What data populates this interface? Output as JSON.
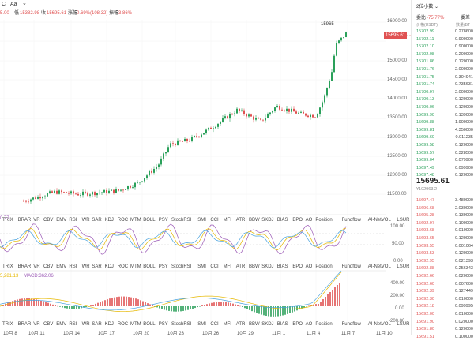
{
  "toolbar": {
    "c_label": "C",
    "aa_label": "Aa",
    "dropdown_label": "⌄"
  },
  "info": {
    "high": "5.00",
    "low_label": "低",
    "low": "15382.98",
    "close_label": "收",
    "close": "15695.61",
    "change_label": "涨幅",
    "change": "0.69%(108.32)",
    "amp_label": "振幅",
    "amp": "3.86%"
  },
  "chart": {
    "current_price": "15695.61",
    "peak_label": "15965",
    "price_ticks": [
      "16000.00",
      "15500.00",
      "15000.00",
      "14500.00",
      "14000.00",
      "13500.00",
      "13000.00",
      "12500.00",
      "12000.00",
      "11500.00"
    ],
    "osc_ticks": [
      "100.00",
      "50.00",
      "0.00"
    ],
    "osc_label": "0.77",
    "macd_label": "5,281.13",
    "macd_value": "MACD:362.06",
    "macd_ticks": [
      "400.00",
      "200.00",
      "0.00",
      "-200.00"
    ],
    "indicators": [
      "TRIX",
      "BRAR",
      "VR",
      "CBV",
      "EMV",
      "RSI",
      "WR",
      "SAR",
      "KDJ",
      "ROC",
      "MTM",
      "BOLL",
      "PSY",
      "StochRSI",
      "SMI",
      "CCI",
      "MFI",
      "ATR",
      "BBW",
      "SKDJ",
      "BIAS",
      "BPO",
      "AO",
      "Position",
      "Fundflow",
      "AI-NetVOL",
      "LSUR"
    ],
    "dates": [
      "10月 8",
      "10月 11",
      "10月 14",
      "10月 17",
      "10月 20",
      "10月 23",
      "10月 26",
      "10月 29",
      "11月 1",
      "11月 4",
      "11月 7",
      "11月 10"
    ],
    "colors": {
      "up": "#2aa05a",
      "down": "#e05252",
      "k": "#9b59b6",
      "d": "#e6b800",
      "j": "#4aa3df"
    }
  },
  "orderbook": {
    "mode_label": "2位小数",
    "ratio_label": "委比",
    "ratio_value": "-75.77%",
    "diff_label": "委差",
    "price_header": "价格(USDT)",
    "amount_header": "数量(BT",
    "asks": [
      {
        "price": "15702.99",
        "amt": "0.278600"
      },
      {
        "price": "15702.11",
        "amt": "0.900000"
      },
      {
        "price": "15702.10",
        "amt": "0.900000"
      },
      {
        "price": "15702.08",
        "amt": "0.200000"
      },
      {
        "price": "15701.86",
        "amt": "0.120000"
      },
      {
        "price": "15701.76",
        "amt": "2.000000"
      },
      {
        "price": "15701.75",
        "amt": "0.304941"
      },
      {
        "price": "15701.74",
        "amt": "0.735631"
      },
      {
        "price": "15700.97",
        "amt": "2.000000"
      },
      {
        "price": "15700.13",
        "amt": "0.120000"
      },
      {
        "price": "15700.06",
        "amt": "0.120000"
      },
      {
        "price": "15699.90",
        "amt": "0.139000"
      },
      {
        "price": "15699.88",
        "amt": "1.900000"
      },
      {
        "price": "15699.81",
        "amt": "4.350000"
      },
      {
        "price": "15699.60",
        "amt": "0.011235"
      },
      {
        "price": "15699.58",
        "amt": "0.120000"
      },
      {
        "price": "15699.57",
        "amt": "0.328500"
      },
      {
        "price": "15699.04",
        "amt": "0.079900"
      },
      {
        "price": "15697.49",
        "amt": "0.099900"
      },
      {
        "price": "15697.48",
        "amt": "0.120000"
      }
    ],
    "last_price": "15695.61",
    "last_sub": "¥102963.2",
    "bids": [
      {
        "price": "15697.47",
        "amt": "3.480000"
      },
      {
        "price": "15696.68",
        "amt": "2.030000"
      },
      {
        "price": "15695.28",
        "amt": "0.139000"
      },
      {
        "price": "15692.97",
        "amt": "0.100000"
      },
      {
        "price": "15693.68",
        "amt": "0.010000"
      },
      {
        "price": "15693.65",
        "amt": "0.120000"
      },
      {
        "price": "15693.55",
        "amt": "0.001064"
      },
      {
        "price": "15693.53",
        "amt": "0.120000"
      },
      {
        "price": "15692.95",
        "amt": "0.021393"
      },
      {
        "price": "15692.88",
        "amt": "0.256343"
      },
      {
        "price": "15692.66",
        "amt": "0.020000"
      },
      {
        "price": "15692.60",
        "amt": "0.007600"
      },
      {
        "price": "15692.39",
        "amt": "0.127449"
      },
      {
        "price": "15692.30",
        "amt": "0.010000"
      },
      {
        "price": "15692.18",
        "amt": "0.099995"
      },
      {
        "price": "15692.00",
        "amt": "0.010000"
      },
      {
        "price": "15691.90",
        "amt": "0.020000"
      },
      {
        "price": "15691.80",
        "amt": "0.120000"
      },
      {
        "price": "15691.51",
        "amt": "0.100000"
      }
    ]
  }
}
